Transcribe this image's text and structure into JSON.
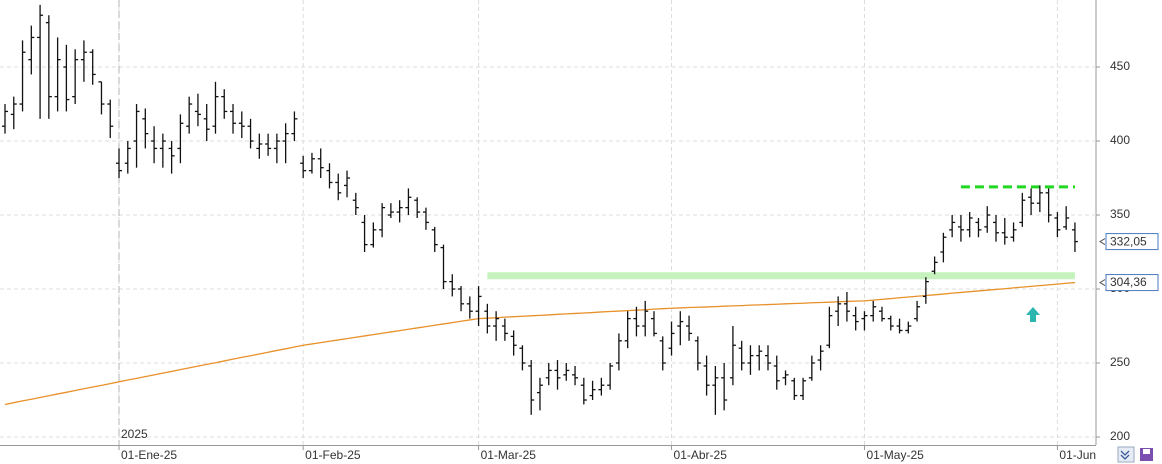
{
  "chart_data": {
    "type": "ohlc",
    "year_label": "2025",
    "categories": [
      null,
      null,
      null,
      null,
      null,
      null,
      null,
      null,
      null,
      null,
      null,
      null,
      null,
      "01-Ene-25",
      null,
      null,
      null,
      null,
      null,
      null,
      null,
      null,
      null,
      null,
      null,
      null,
      null,
      null,
      null,
      null,
      null,
      null,
      null,
      null,
      "01-Feb-25",
      null,
      null,
      null,
      null,
      null,
      null,
      null,
      null,
      null,
      null,
      null,
      null,
      null,
      null,
      null,
      null,
      null,
      null,
      null,
      "01-Mar-25",
      null,
      null,
      null,
      null,
      null,
      null,
      null,
      null,
      null,
      null,
      null,
      null,
      null,
      null,
      null,
      null,
      null,
      null,
      null,
      null,
      null,
      "01-Abr-25",
      null,
      null,
      null,
      null,
      null,
      null,
      null,
      null,
      null,
      null,
      null,
      null,
      null,
      null,
      null,
      null,
      null,
      null,
      null,
      null,
      null,
      "01-May-25",
      null,
      null,
      null,
      null,
      null,
      null,
      null,
      null,
      null,
      null,
      null,
      null,
      null,
      null,
      null,
      null,
      null,
      null,
      null,
      null,
      null,
      "01-Jun",
      null,
      null
    ],
    "color": "#111111",
    "open": [
      410,
      418,
      425,
      455,
      470,
      480,
      430,
      450,
      430,
      455,
      460,
      440,
      425,
      385,
      385,
      400,
      415,
      400,
      395,
      395,
      395,
      410,
      420,
      415,
      410,
      430,
      420,
      412,
      410,
      395,
      398,
      395,
      400,
      405,
      385,
      380,
      388,
      380,
      372,
      370,
      360,
      345,
      330,
      340,
      350,
      352,
      355,
      360,
      352,
      340,
      328,
      305,
      300,
      290,
      285,
      285,
      275,
      275,
      268,
      260,
      248,
      230,
      240,
      245,
      242,
      242,
      235,
      228,
      232,
      235,
      250,
      265,
      280,
      275,
      280,
      265,
      260,
      275,
      275,
      265,
      248,
      235,
      240,
      240,
      260,
      250,
      255,
      255,
      248,
      240,
      238,
      228,
      240,
      252,
      262,
      285,
      290,
      282,
      280,
      282,
      285,
      280,
      275,
      272,
      280,
      295,
      312,
      325,
      340,
      342,
      340,
      345,
      342,
      345,
      338,
      335,
      345,
      362,
      358,
      365,
      348,
      342,
      340
    ],
    "high": [
      425,
      430,
      468,
      478,
      492,
      485,
      470,
      465,
      462,
      468,
      462,
      440,
      428,
      395,
      400,
      425,
      422,
      410,
      405,
      400,
      418,
      430,
      432,
      425,
      440,
      435,
      425,
      420,
      415,
      405,
      405,
      405,
      412,
      420,
      390,
      392,
      395,
      385,
      378,
      380,
      365,
      350,
      345,
      358,
      358,
      360,
      368,
      362,
      355,
      342,
      330,
      310,
      302,
      295,
      302,
      290,
      285,
      280,
      272,
      262,
      252,
      240,
      250,
      252,
      250,
      248,
      240,
      238,
      240,
      250,
      270,
      285,
      288,
      292,
      285,
      268,
      278,
      285,
      282,
      268,
      255,
      248,
      250,
      275,
      265,
      262,
      262,
      262,
      255,
      245,
      240,
      240,
      255,
      262,
      288,
      295,
      298,
      288,
      285,
      292,
      288,
      282,
      280,
      278,
      292,
      308,
      322,
      338,
      350,
      350,
      352,
      348,
      356,
      350,
      348,
      345,
      365,
      368,
      370,
      368,
      352,
      356,
      345
    ],
    "low": [
      405,
      408,
      420,
      445,
      415,
      415,
      420,
      420,
      425,
      440,
      438,
      418,
      402,
      375,
      378,
      382,
      395,
      385,
      382,
      378,
      385,
      405,
      410,
      400,
      405,
      415,
      405,
      402,
      395,
      388,
      390,
      385,
      385,
      400,
      375,
      378,
      375,
      368,
      360,
      362,
      350,
      325,
      328,
      335,
      348,
      345,
      350,
      348,
      340,
      325,
      300,
      295,
      285,
      280,
      275,
      270,
      265,
      265,
      255,
      245,
      215,
      218,
      235,
      232,
      238,
      235,
      222,
      225,
      228,
      232,
      245,
      260,
      268,
      268,
      268,
      245,
      255,
      262,
      265,
      245,
      228,
      215,
      218,
      235,
      245,
      242,
      245,
      245,
      232,
      235,
      225,
      225,
      238,
      245,
      260,
      275,
      278,
      272,
      272,
      278,
      278,
      272,
      270,
      270,
      278,
      290,
      310,
      318,
      335,
      332,
      335,
      335,
      338,
      332,
      330,
      332,
      342,
      350,
      352,
      345,
      335,
      340,
      325
    ],
    "close": [
      420,
      425,
      460,
      470,
      485,
      430,
      455,
      428,
      455,
      460,
      445,
      425,
      410,
      380,
      395,
      420,
      405,
      395,
      400,
      390,
      412,
      425,
      418,
      408,
      430,
      420,
      412,
      410,
      400,
      398,
      395,
      400,
      405,
      415,
      380,
      388,
      382,
      372,
      365,
      375,
      355,
      330,
      340,
      355,
      352,
      355,
      362,
      352,
      345,
      330,
      305,
      300,
      290,
      285,
      295,
      275,
      280,
      270,
      262,
      250,
      225,
      235,
      245,
      240,
      245,
      240,
      225,
      232,
      235,
      248,
      265,
      280,
      275,
      285,
      270,
      250,
      270,
      278,
      270,
      250,
      235,
      240,
      225,
      262,
      250,
      255,
      258,
      250,
      238,
      242,
      228,
      238,
      250,
      258,
      282,
      290,
      285,
      278,
      282,
      288,
      280,
      275,
      272,
      275,
      288,
      305,
      318,
      335,
      345,
      340,
      348,
      340,
      350,
      338,
      335,
      340,
      360,
      358,
      365,
      350,
      340,
      348,
      332.05
    ],
    "last_label": "332,05",
    "ma": {
      "color": "#e8912a",
      "last_label": "304,36",
      "values": [
        222,
        223.2,
        224.4,
        225.5,
        226.7,
        227.9,
        229.1,
        230.2,
        231.4,
        232.6,
        233.8,
        234.9,
        236.1,
        237.3,
        238.5,
        239.6,
        240.8,
        242,
        243.2,
        244.3,
        245.5,
        246.7,
        247.9,
        249.1,
        250.2,
        251.4,
        252.6,
        253.8,
        254.9,
        256.1,
        257.3,
        258.5,
        259.6,
        260.8,
        262,
        262.9,
        263.8,
        264.7,
        265.6,
        266.5,
        267.4,
        268.3,
        269.2,
        270.1,
        271,
        271.9,
        272.8,
        273.7,
        274.6,
        275.5,
        276.4,
        277.3,
        278.2,
        279.1,
        280,
        280.3,
        280.6,
        281,
        281.3,
        281.6,
        281.9,
        282.2,
        282.5,
        282.9,
        283.2,
        283.5,
        283.8,
        284.1,
        284.5,
        284.8,
        285.1,
        285.4,
        285.7,
        286,
        286.4,
        286.7,
        287,
        287.2,
        287.5,
        287.7,
        287.9,
        288.1,
        288.4,
        288.6,
        288.8,
        289.1,
        289.3,
        289.5,
        289.7,
        290,
        290.2,
        290.4,
        290.7,
        290.9,
        291.1,
        291.4,
        291.6,
        291.8,
        292,
        292.5,
        293,
        293.5,
        294.1,
        294.6,
        295.1,
        295.6,
        296.1,
        296.6,
        297.2,
        297.7,
        298.2,
        298.7,
        299.2,
        299.7,
        300.2,
        300.8,
        301.3,
        301.8,
        302.3,
        302.8,
        303.3,
        303.9,
        304.36
      ]
    },
    "levels": [
      {
        "value": 309,
        "start": 55,
        "end": 122,
        "color": "#c6f3bd",
        "style": "solid"
      },
      {
        "value": 369,
        "start": 109,
        "end": 122,
        "color": "#1fd81f",
        "style": "dashed"
      }
    ],
    "ylim": [
      194.6,
      495.3
    ],
    "yticks": [
      200,
      250,
      300,
      350,
      400,
      450
    ],
    "grid": true
  }
}
